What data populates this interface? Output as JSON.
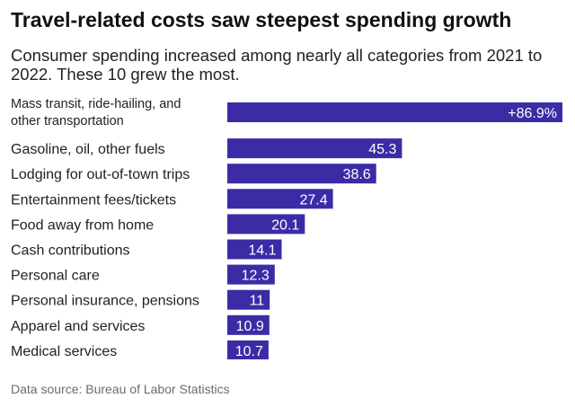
{
  "chart_data": {
    "type": "bar",
    "orientation": "horizontal",
    "title": "Travel-related costs saw steepest spending growth",
    "subtitle": "Consumer spending increased among nearly all categories from 2021 to 2022. These 10 grew the most.",
    "categories": [
      "Mass transit, ride-hailing, and other transportation",
      "Gasoline, oil, other fuels",
      "Lodging for out-of-town trips",
      "Entertainment fees/tickets",
      "Food away from home",
      "Cash contributions",
      "Personal care",
      "Personal insurance, pensions",
      "Apparel and services",
      "Medical services"
    ],
    "values": [
      86.9,
      45.3,
      38.6,
      27.4,
      20.1,
      14.1,
      12.3,
      11,
      10.9,
      10.7
    ],
    "value_labels": [
      "+86.9%",
      "45.3",
      "38.6",
      "27.4",
      "20.1",
      "14.1",
      "12.3",
      "11",
      "10.9",
      "10.7"
    ],
    "xlim": [
      0,
      86.9
    ],
    "xlabel": "",
    "ylabel": "",
    "grid": false,
    "bar_color": "#3b2ca6",
    "label_color": "#ffffff",
    "source": "Data source: Bureau of Labor Statistics"
  }
}
